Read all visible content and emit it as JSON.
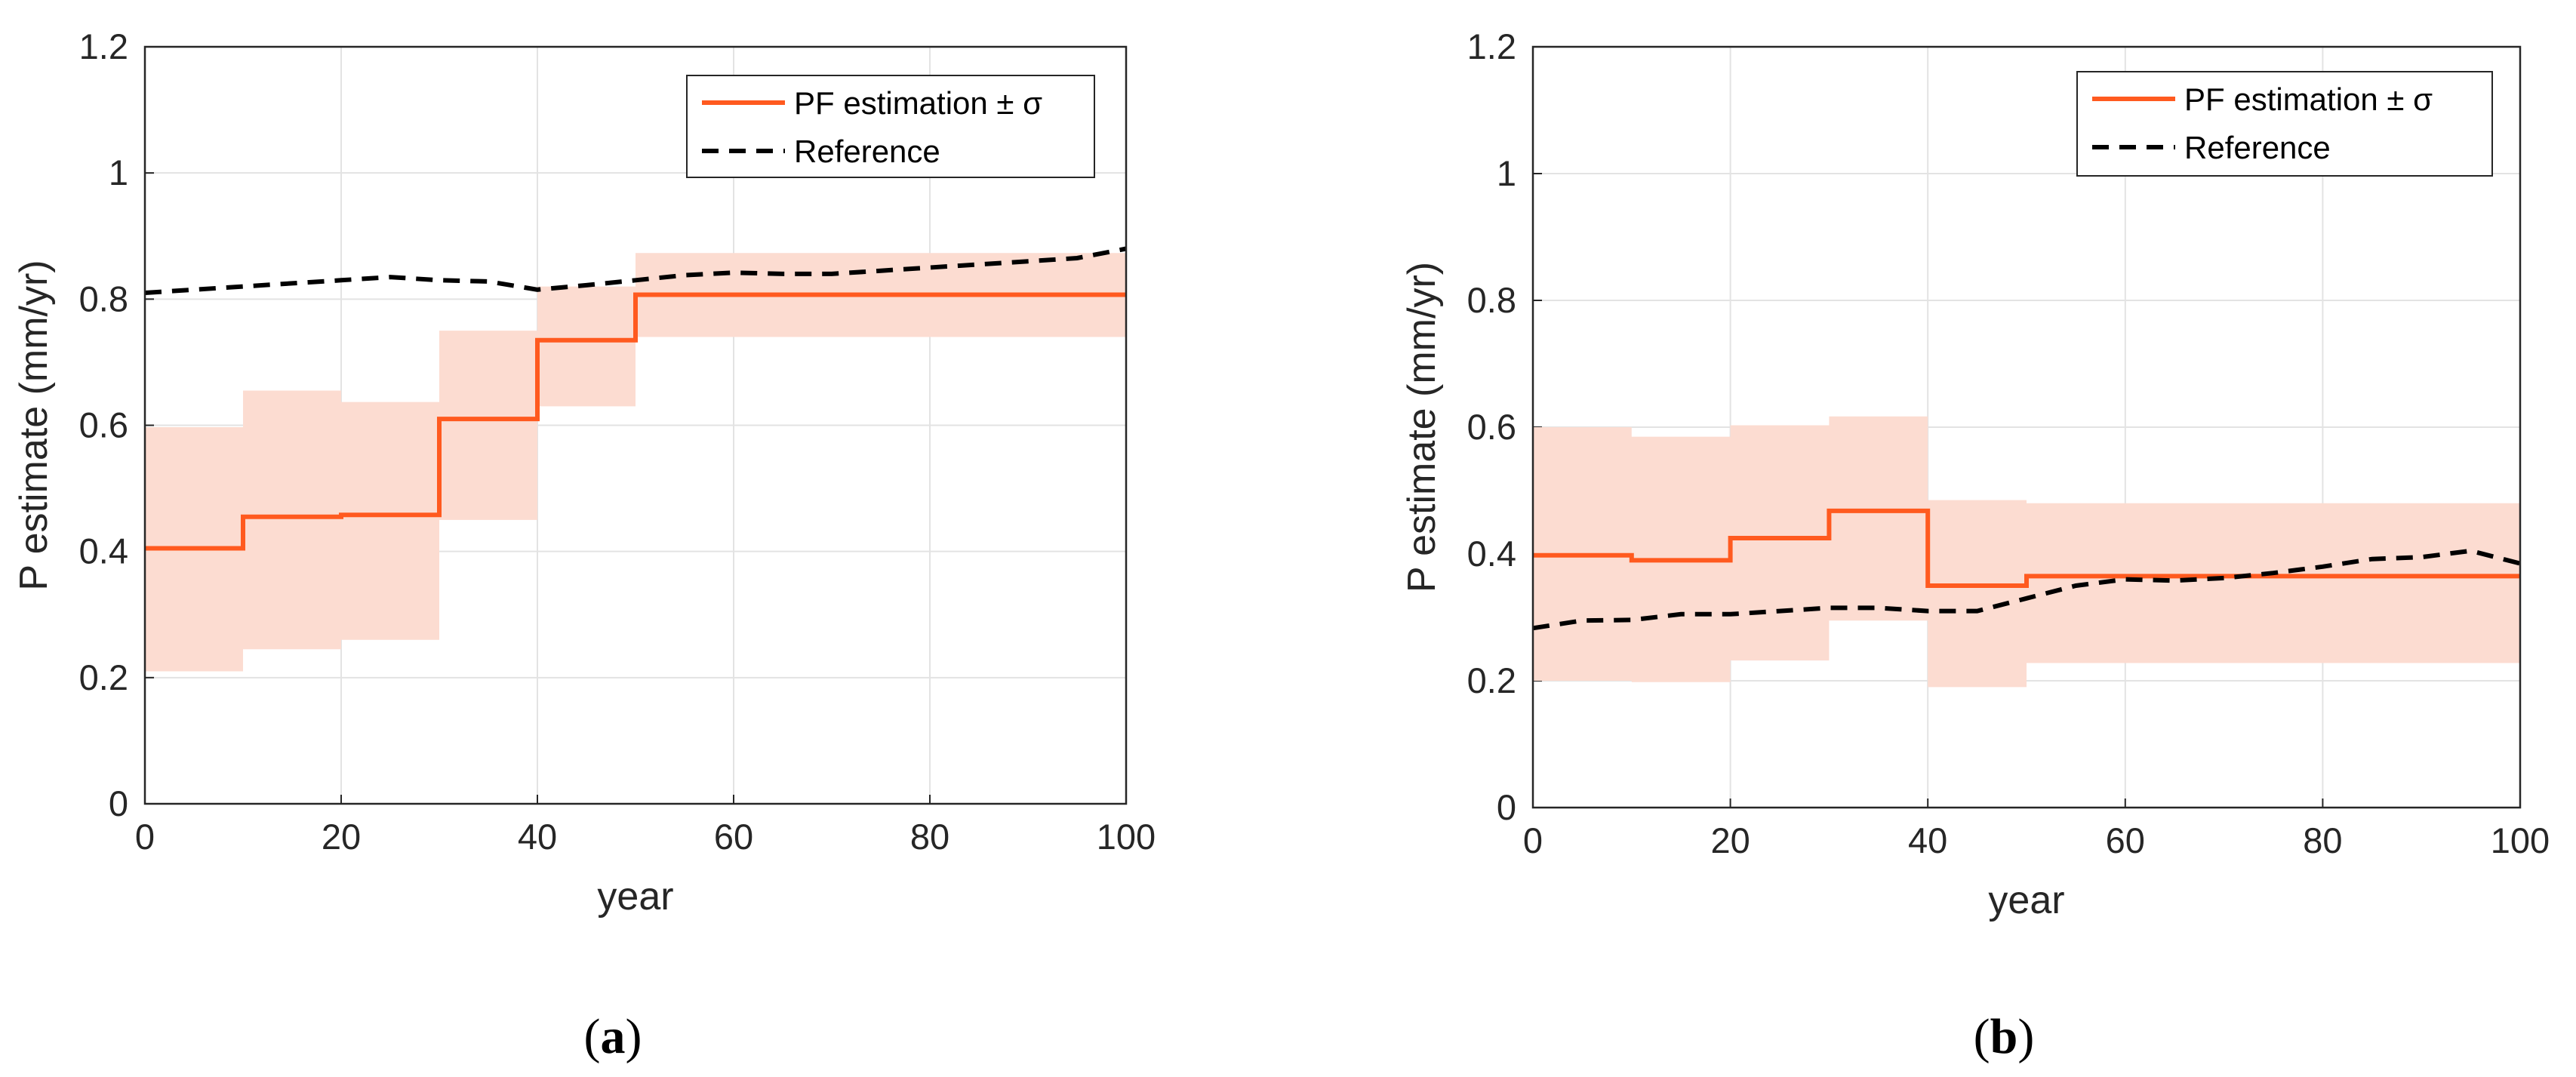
{
  "colors": {
    "estimate": "#ff5a1f",
    "band": "#fcdcd1",
    "reference": "#000000",
    "grid": "#e3e3e3",
    "axis": "#262626"
  },
  "chart_data": [
    {
      "type": "line",
      "caption_letter": "a",
      "caption_open": "(",
      "caption_close": ")",
      "xlabel": "year",
      "ylabel": "P estimate (mm/yr)",
      "xlim": [
        0,
        100
      ],
      "ylim": [
        0,
        1.2
      ],
      "xticks": [
        "0",
        "20",
        "40",
        "60",
        "80",
        "100"
      ],
      "yticks": [
        "0",
        "0.2",
        "0.4",
        "0.6",
        "0.8",
        "1",
        "1.2"
      ],
      "grid": true,
      "legend_position": "top-right",
      "legend": [
        "PF estimation ± σ",
        "Reference"
      ],
      "series": [
        {
          "name": "PF estimation",
          "style": "solid",
          "x": [
            0,
            10,
            20,
            30,
            40,
            50,
            100
          ],
          "y": [
            0.405,
            0.455,
            0.458,
            0.61,
            0.735,
            0.807,
            0.807
          ]
        },
        {
          "name": "PF estimation band",
          "style": "band",
          "x": [
            0,
            10,
            20,
            30,
            40,
            50,
            100
          ],
          "lower": [
            0.21,
            0.245,
            0.26,
            0.45,
            0.63,
            0.74,
            0.735
          ],
          "upper": [
            0.597,
            0.655,
            0.637,
            0.75,
            0.82,
            0.873,
            0.88
          ]
        },
        {
          "name": "Reference",
          "style": "dashed",
          "x": [
            0,
            5,
            10,
            15,
            20,
            25,
            30,
            35,
            40,
            45,
            50,
            55,
            60,
            65,
            70,
            75,
            80,
            85,
            90,
            95,
            100
          ],
          "y": [
            0.81,
            0.815,
            0.82,
            0.825,
            0.83,
            0.835,
            0.83,
            0.828,
            0.815,
            0.822,
            0.83,
            0.838,
            0.842,
            0.84,
            0.84,
            0.845,
            0.85,
            0.855,
            0.86,
            0.865,
            0.88
          ]
        }
      ]
    },
    {
      "type": "line",
      "caption_letter": "b",
      "caption_open": "(",
      "caption_close": ")",
      "xlabel": "year",
      "ylabel": "P estimate (mm/yr)",
      "xlim": [
        0,
        100
      ],
      "ylim": [
        0,
        1.2
      ],
      "xticks": [
        "0",
        "20",
        "40",
        "60",
        "80",
        "100"
      ],
      "yticks": [
        "0",
        "0.2",
        "0.4",
        "0.6",
        "0.8",
        "1",
        "1.2"
      ],
      "grid": true,
      "legend_position": "top-right",
      "legend": [
        "PF estimation ± σ",
        "Reference"
      ],
      "series": [
        {
          "name": "PF estimation",
          "style": "solid",
          "x": [
            0,
            10,
            20,
            30,
            40,
            50,
            100
          ],
          "y": [
            0.398,
            0.39,
            0.425,
            0.468,
            0.35,
            0.365,
            0.365
          ]
        },
        {
          "name": "PF estimation band",
          "style": "band",
          "x": [
            0,
            10,
            20,
            30,
            40,
            50,
            100
          ],
          "lower": [
            0.2,
            0.198,
            0.232,
            0.295,
            0.19,
            0.228,
            0.225
          ],
          "upper": [
            0.6,
            0.585,
            0.603,
            0.617,
            0.485,
            0.48,
            0.484
          ]
        },
        {
          "name": "Reference",
          "style": "dashed",
          "x": [
            0,
            5,
            10,
            15,
            20,
            25,
            30,
            35,
            40,
            45,
            50,
            55,
            60,
            65,
            70,
            75,
            80,
            85,
            90,
            95,
            100
          ],
          "y": [
            0.283,
            0.295,
            0.296,
            0.305,
            0.305,
            0.31,
            0.315,
            0.315,
            0.31,
            0.31,
            0.33,
            0.35,
            0.36,
            0.358,
            0.362,
            0.37,
            0.38,
            0.392,
            0.395,
            0.405,
            0.385
          ]
        }
      ]
    }
  ]
}
